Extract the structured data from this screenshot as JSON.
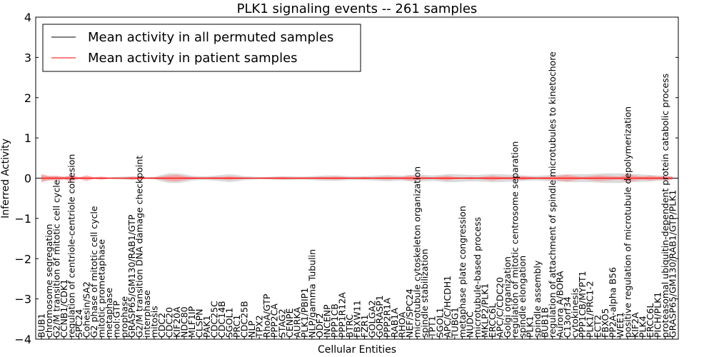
{
  "chart_data": {
    "type": "line",
    "title": "PLK1 signaling events -- 261 samples",
    "xlabel": "Cellular Entities",
    "ylabel": "Inferred Activity",
    "ylim": [
      -4,
      4
    ],
    "yticks": [
      -4,
      -3,
      -2,
      -1,
      0,
      1,
      2,
      3,
      4
    ],
    "legend_position": "top-left",
    "series": [
      {
        "name": "Mean activity in all permuted samples",
        "color": "#000000",
        "value": 0.0
      },
      {
        "name": "Mean activity in patient samples",
        "color": "#ff0000",
        "value": 0.0
      }
    ],
    "permuted_band_color": "#cccccc",
    "patient_band_color": "#ff8080",
    "categories": [
      "BUB1",
      "chromosome segregation",
      "G2/M transition of mitotic cell cycle",
      "CCNB1/CDK1",
      "regulation of centriole-centriole cohesion",
      "SPC24",
      "Cohesin/SA2",
      "G2 phase of mitotic cell cycle",
      "mitotic prometaphase",
      "metaphase",
      "mol:GTP",
      "prophase",
      "GRASP65/GM130/RAB1/GTP",
      "G2/M transition DNA damage checkpoint",
      "interphase",
      "mitosis",
      "CDC2",
      "CDC20",
      "KIF20A",
      "NDC80",
      "MLF1IP",
      "CLSPN",
      "PAK1",
      "CDC25C",
      "CDC14B",
      "SGOL1",
      "PRC1",
      "CDC25B",
      "NLP",
      "TPX2",
      "RhoA/GTP",
      "PPP2CA",
      "STAG2",
      "CENPE",
      "AURKA",
      "PLK1/PBIP1",
      "NLP/gamma Tubulin",
      "ODF2",
      "INCENP",
      "PPP1CB",
      "PPP1R12A",
      "BTRC",
      "FBXW11",
      "FZR1",
      "GOLGA2",
      "GORASP1",
      "PPP2R1A",
      "RAB1A",
      "RHOA",
      "NEF/SPC24",
      "microtubule cytoskeleton organization",
      "spindle stabilization",
      "TPT1",
      "SGOL1",
      "APC/C/HCDH1",
      "TUBG1",
      "metaphase plate congression",
      "NUDC",
      "microtubule-based process",
      "MKLP2/PLK1",
      "ERCC6L",
      "APC/C/CDC20",
      "Golgi organization",
      "regulation of mitotic centrosome separation",
      "spindle elongation",
      "PLK1",
      "spindle assembly",
      "BUB1B",
      "regulation of attachment of spindle microtubules to kinetochore",
      "Aurora A/BORA",
      "C13orf34",
      "cytokinesis",
      "PPP1CB/MYPT1",
      "PLK1/PRC1-2",
      "ECT2",
      "FBXO5",
      "PP2A-alpha B56",
      "WEE1",
      "positive regulation of microtubule depolymerization",
      "KIF2A",
      "PLK4",
      "ERCC6L",
      "PICH/PLK1",
      "proteasomal ubiquitin-dependent protein catabolic process",
      "GRASP65/GM130/RAB1/GTP/PLK1"
    ],
    "permuted_spread": [
      0.06,
      0.06,
      0.04,
      0.04,
      0.04,
      0.03,
      0.02,
      0.02,
      0.02,
      0.02,
      0.03,
      0.04,
      0.05,
      0.03,
      0.02,
      0.03,
      0.08,
      0.12,
      0.12,
      0.1,
      0.06,
      0.05,
      0.05,
      0.06,
      0.08,
      0.1,
      0.08,
      0.05,
      0.04,
      0.03,
      0.03,
      0.04,
      0.05,
      0.05,
      0.04,
      0.04,
      0.05,
      0.06,
      0.07,
      0.07,
      0.06,
      0.05,
      0.05,
      0.05,
      0.06,
      0.07,
      0.08,
      0.07,
      0.06,
      0.08,
      0.09,
      0.08,
      0.07,
      0.08,
      0.1,
      0.1,
      0.09,
      0.08,
      0.08,
      0.09,
      0.1,
      0.1,
      0.09,
      0.08,
      0.07,
      0.06,
      0.06,
      0.07,
      0.08,
      0.09,
      0.1,
      0.1,
      0.1,
      0.1,
      0.11,
      0.12,
      0.12,
      0.12,
      0.11,
      0.1,
      0.09,
      0.08,
      0.07,
      0.06,
      0.05
    ],
    "patient_spread": [
      0.1,
      0.05,
      0.06,
      0.03,
      0.08,
      0.02,
      0.07,
      0.02,
      0.04,
      0.01,
      0.01,
      0.01,
      0.03,
      0.04,
      0.01,
      0.02,
      0.04,
      0.07,
      0.08,
      0.05,
      0.03,
      0.02,
      0.02,
      0.03,
      0.03,
      0.05,
      0.03,
      0.02,
      0.01,
      0.01,
      0.02,
      0.02,
      0.03,
      0.02,
      0.02,
      0.02,
      0.02,
      0.03,
      0.03,
      0.04,
      0.03,
      0.02,
      0.02,
      0.03,
      0.02,
      0.03,
      0.04,
      0.03,
      0.03,
      0.06,
      0.05,
      0.03,
      0.02,
      0.04,
      0.06,
      0.03,
      0.02,
      0.03,
      0.02,
      0.04,
      0.06,
      0.04,
      0.03,
      0.04,
      0.05,
      0.03,
      0.02,
      0.03,
      0.04,
      0.06,
      0.08,
      0.05,
      0.03,
      0.05,
      0.07,
      0.06,
      0.05,
      0.04,
      0.09,
      0.06,
      0.04,
      0.06,
      0.04,
      0.05,
      0.03
    ]
  }
}
